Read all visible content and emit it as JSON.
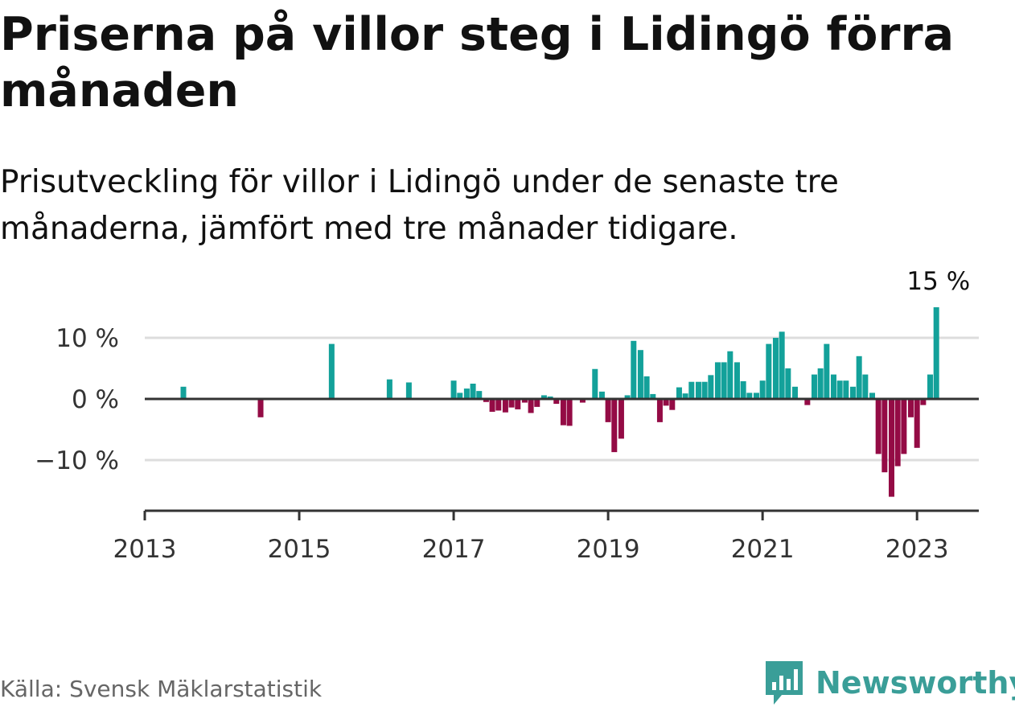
{
  "title": "Priserna på villor steg i Lidingö förra månaden",
  "subtitle": "Prisutveckling för villor i Lidingö under de senaste tre månaderna, jämfört med tre månader tidigare.",
  "source": "Källa: Svensk Mäklarstatistik",
  "brand": {
    "name": "Newsworthy",
    "logo_icon": "bar-chart-speech-bubble-icon"
  },
  "colors": {
    "positive": "#13a19a",
    "negative": "#940b45",
    "axis": "#333333",
    "grid": "#dddddd",
    "brand": "#3a9e98"
  },
  "chart_data": {
    "type": "bar",
    "title": "Priserna på villor steg i Lidingö förra månaden",
    "xlabel": "",
    "ylabel": "",
    "ylim": [
      -18,
      15
    ],
    "xlim": [
      2013,
      2023.8
    ],
    "y_ticks": [
      10,
      0,
      -10
    ],
    "y_tick_labels": [
      "10 %",
      "0 %",
      "−10 %"
    ],
    "x_ticks": [
      2013,
      2015,
      2017,
      2019,
      2021,
      2023
    ],
    "x_tick_labels": [
      "2013",
      "2015",
      "2017",
      "2019",
      "2021",
      "2023"
    ],
    "annotation": {
      "x": 2023.25,
      "value": 15,
      "label": "15 %"
    },
    "series": [
      {
        "name": "Prisutveckling",
        "points": [
          {
            "x": 2013.5,
            "value": 2
          },
          {
            "x": 2014.5,
            "value": -3
          },
          {
            "x": 2015.42,
            "value": 9
          },
          {
            "x": 2016.17,
            "value": 3.2
          },
          {
            "x": 2016.42,
            "value": 2.7
          },
          {
            "x": 2017.0,
            "value": 3
          },
          {
            "x": 2017.08,
            "value": 1
          },
          {
            "x": 2017.17,
            "value": 1.7
          },
          {
            "x": 2017.25,
            "value": 2.5
          },
          {
            "x": 2017.33,
            "value": 1.3
          },
          {
            "x": 2017.42,
            "value": -0.5
          },
          {
            "x": 2017.5,
            "value": -2.1
          },
          {
            "x": 2017.58,
            "value": -1.9
          },
          {
            "x": 2017.67,
            "value": -2.2
          },
          {
            "x": 2017.75,
            "value": -1.4
          },
          {
            "x": 2017.83,
            "value": -1.7
          },
          {
            "x": 2017.92,
            "value": -0.6
          },
          {
            "x": 2018.0,
            "value": -2.3
          },
          {
            "x": 2018.08,
            "value": -1.3
          },
          {
            "x": 2018.17,
            "value": 0.6
          },
          {
            "x": 2018.25,
            "value": 0.4
          },
          {
            "x": 2018.33,
            "value": -0.8
          },
          {
            "x": 2018.42,
            "value": -4.3
          },
          {
            "x": 2018.5,
            "value": -4.4
          },
          {
            "x": 2018.67,
            "value": -0.6
          },
          {
            "x": 2018.83,
            "value": 4.9
          },
          {
            "x": 2018.92,
            "value": 1.2
          },
          {
            "x": 2019.0,
            "value": -3.8
          },
          {
            "x": 2019.08,
            "value": -8.7
          },
          {
            "x": 2019.17,
            "value": -6.5
          },
          {
            "x": 2019.25,
            "value": 0.6
          },
          {
            "x": 2019.33,
            "value": 9.5
          },
          {
            "x": 2019.42,
            "value": 8
          },
          {
            "x": 2019.5,
            "value": 3.7
          },
          {
            "x": 2019.58,
            "value": 0.8
          },
          {
            "x": 2019.67,
            "value": -3.8
          },
          {
            "x": 2019.75,
            "value": -1.1
          },
          {
            "x": 2019.83,
            "value": -1.8
          },
          {
            "x": 2019.92,
            "value": 1.9
          },
          {
            "x": 2020.0,
            "value": 0.9
          },
          {
            "x": 2020.08,
            "value": 2.8
          },
          {
            "x": 2020.17,
            "value": 2.8
          },
          {
            "x": 2020.25,
            "value": 2.8
          },
          {
            "x": 2020.33,
            "value": 3.9
          },
          {
            "x": 2020.42,
            "value": 6
          },
          {
            "x": 2020.5,
            "value": 6
          },
          {
            "x": 2020.58,
            "value": 7.8
          },
          {
            "x": 2020.67,
            "value": 6
          },
          {
            "x": 2020.75,
            "value": 2.9
          },
          {
            "x": 2020.83,
            "value": 1
          },
          {
            "x": 2020.92,
            "value": 1
          },
          {
            "x": 2021.0,
            "value": 3
          },
          {
            "x": 2021.08,
            "value": 9
          },
          {
            "x": 2021.17,
            "value": 10
          },
          {
            "x": 2021.25,
            "value": 11
          },
          {
            "x": 2021.33,
            "value": 5
          },
          {
            "x": 2021.42,
            "value": 2
          },
          {
            "x": 2021.58,
            "value": -1
          },
          {
            "x": 2021.67,
            "value": 4
          },
          {
            "x": 2021.75,
            "value": 5
          },
          {
            "x": 2021.83,
            "value": 9
          },
          {
            "x": 2021.92,
            "value": 4
          },
          {
            "x": 2022.0,
            "value": 3
          },
          {
            "x": 2022.08,
            "value": 3
          },
          {
            "x": 2022.17,
            "value": 2
          },
          {
            "x": 2022.25,
            "value": 7
          },
          {
            "x": 2022.33,
            "value": 4
          },
          {
            "x": 2022.42,
            "value": 1
          },
          {
            "x": 2022.5,
            "value": -9
          },
          {
            "x": 2022.58,
            "value": -12
          },
          {
            "x": 2022.67,
            "value": -16
          },
          {
            "x": 2022.75,
            "value": -11
          },
          {
            "x": 2022.83,
            "value": -9
          },
          {
            "x": 2022.92,
            "value": -3
          },
          {
            "x": 2023.0,
            "value": -8
          },
          {
            "x": 2023.08,
            "value": -1
          },
          {
            "x": 2023.17,
            "value": 4
          },
          {
            "x": 2023.25,
            "value": 15
          }
        ]
      }
    ]
  }
}
